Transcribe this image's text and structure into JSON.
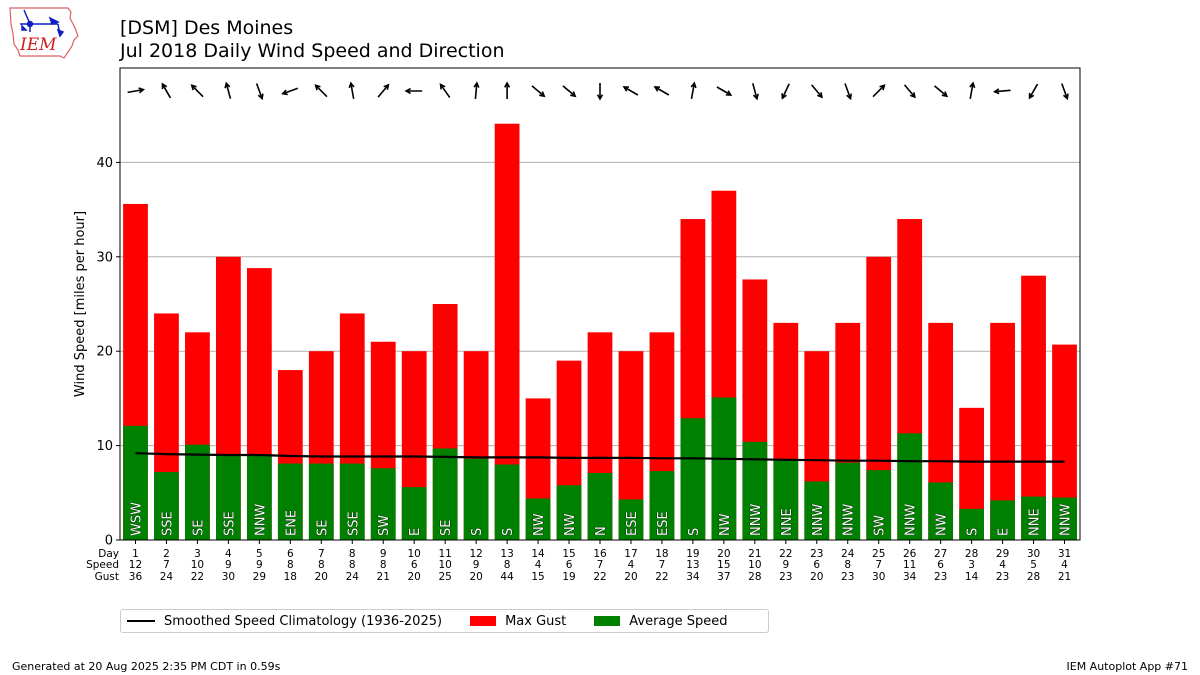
{
  "header": {
    "logo_text": "IEM",
    "title_line1": "[DSM] Des Moines",
    "title_line2": "Jul 2018 Daily Wind Speed and Direction"
  },
  "legend": {
    "climatology_label": "Smoothed Speed Climatology (1936-2025)",
    "gust_label": "Max Gust",
    "avg_label": "Average Speed"
  },
  "footer": {
    "generated": "Generated at 20 Aug 2025 2:35 PM CDT in 0.59s",
    "app": "IEM Autoplot App #71"
  },
  "colors": {
    "gust": "#ff0000",
    "avg": "#008000",
    "climatology": "#000000",
    "grid": "#b0b0b0"
  },
  "chart_data": {
    "type": "bar",
    "ylabel": "Wind Speed [miles per hour]",
    "ylim": [
      0,
      50
    ],
    "yticks": [
      0,
      10,
      20,
      30,
      40
    ],
    "grid": "y-major",
    "legend_placement": "bottom-left outside",
    "row_labels": [
      "Day",
      "Speed",
      "Gust"
    ],
    "days": [
      1,
      2,
      3,
      4,
      5,
      6,
      7,
      8,
      9,
      10,
      11,
      12,
      13,
      14,
      15,
      16,
      17,
      18,
      19,
      20,
      21,
      22,
      23,
      24,
      25,
      26,
      27,
      28,
      29,
      30,
      31
    ],
    "speed_labels": [
      12,
      7,
      10,
      9,
      9,
      8,
      8,
      8,
      8,
      6,
      10,
      9,
      8,
      4,
      6,
      7,
      4,
      7,
      13,
      15,
      10,
      9,
      6,
      8,
      7,
      11,
      6,
      3,
      4,
      5,
      4
    ],
    "gust_labels": [
      36,
      24,
      22,
      30,
      29,
      18,
      20,
      24,
      21,
      20,
      25,
      20,
      44,
      15,
      19,
      22,
      20,
      22,
      34,
      37,
      28,
      23,
      20,
      23,
      30,
      34,
      23,
      14,
      23,
      28,
      21
    ],
    "series": [
      {
        "name": "Max Gust",
        "values": [
          35.6,
          24.0,
          22.0,
          30.0,
          28.8,
          18.0,
          20.0,
          24.0,
          21.0,
          20.0,
          25.0,
          20.0,
          44.1,
          15.0,
          19.0,
          22.0,
          20.0,
          22.0,
          34.0,
          37.0,
          27.6,
          23.0,
          20.0,
          23.0,
          30.0,
          34.0,
          23.0,
          14.0,
          23.0,
          28.0,
          20.7
        ]
      },
      {
        "name": "Average Speed",
        "values": [
          12.1,
          7.2,
          10.1,
          9.0,
          9.1,
          8.1,
          8.1,
          8.1,
          7.6,
          5.6,
          9.7,
          8.6,
          8.0,
          4.4,
          5.8,
          7.1,
          4.3,
          7.3,
          12.9,
          15.1,
          10.4,
          8.6,
          6.2,
          8.2,
          7.4,
          11.3,
          6.1,
          3.3,
          4.2,
          4.6,
          4.5
        ]
      },
      {
        "name": "Smoothed Speed Climatology (1936-2025)",
        "values": [
          9.2,
          9.1,
          9.05,
          9.0,
          9.0,
          8.9,
          8.85,
          8.85,
          8.85,
          8.85,
          8.8,
          8.75,
          8.75,
          8.75,
          8.7,
          8.7,
          8.7,
          8.65,
          8.65,
          8.6,
          8.55,
          8.5,
          8.45,
          8.4,
          8.4,
          8.35,
          8.35,
          8.3,
          8.3,
          8.3,
          8.3
        ]
      }
    ],
    "direction_labels": [
      "WSW",
      "SSE",
      "SE",
      "SSE",
      "NNW",
      "ENE",
      "SE",
      "SSE",
      "SW",
      "E",
      "SE",
      "S",
      "S",
      "NW",
      "NW",
      "N",
      "ESE",
      "ESE",
      "S",
      "NW",
      "NNW",
      "NNE",
      "NNW",
      "NNW",
      "SW",
      "NNW",
      "NW",
      "S",
      "E",
      "NNE",
      "NNW"
    ],
    "arrow_angles_deg": [
      80,
      -30,
      -45,
      -15,
      160,
      -110,
      -45,
      -10,
      40,
      -90,
      -35,
      5,
      0,
      130,
      130,
      180,
      -60,
      -60,
      10,
      120,
      165,
      -155,
      140,
      160,
      45,
      140,
      130,
      10,
      -95,
      -150,
      160
    ]
  }
}
